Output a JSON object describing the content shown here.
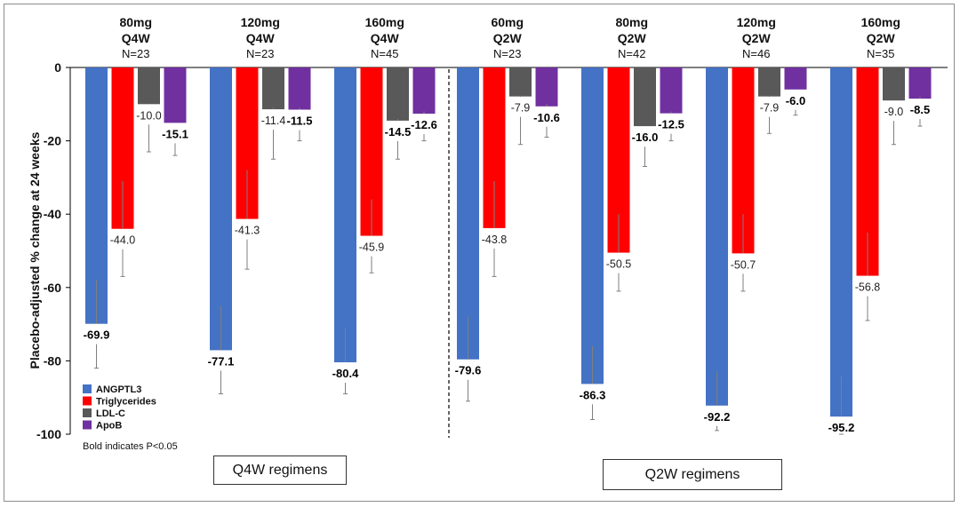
{
  "chart_data": {
    "type": "bar",
    "ylabel": "Placebo-adjusted % change at 24 weeks",
    "ylim": [
      -100,
      0
    ],
    "yticks": [
      0,
      -20,
      -40,
      -60,
      -80,
      -100
    ],
    "groups": [
      {
        "dose": "80mg",
        "freq": "Q4W",
        "n": "N=23"
      },
      {
        "dose": "120mg",
        "freq": "Q4W",
        "n": "N=23"
      },
      {
        "dose": "160mg",
        "freq": "Q4W",
        "n": "N=45"
      },
      {
        "dose": "60mg",
        "freq": "Q2W",
        "n": "N=23"
      },
      {
        "dose": "80mg",
        "freq": "Q2W",
        "n": "N=42"
      },
      {
        "dose": "120mg",
        "freq": "Q2W",
        "n": "N=46"
      },
      {
        "dose": "160mg",
        "freq": "Q2W",
        "n": "N=35"
      }
    ],
    "series": [
      {
        "name": "ANGPTL3",
        "color": "#4472C4",
        "values": [
          -69.9,
          -77.1,
          -80.4,
          -79.6,
          -86.3,
          -92.2,
          -95.2
        ],
        "labels": [
          "-69.9",
          "-77.1",
          "-80.4",
          "-79.6",
          "-86.3",
          "-92.2",
          "-95.2"
        ],
        "err_low": [
          -82,
          -89,
          -89,
          -91,
          -96,
          -99,
          -100
        ],
        "err_high": [
          -58,
          -65,
          -71,
          -68,
          -76,
          -83,
          -84
        ],
        "bold": [
          true,
          true,
          true,
          true,
          true,
          true,
          true
        ]
      },
      {
        "name": "Triglycerides",
        "color": "#FF0000",
        "values": [
          -44.0,
          -41.3,
          -45.9,
          -43.8,
          -50.5,
          -50.7,
          -56.8
        ],
        "labels": [
          "-44.0",
          "-41.3",
          "-45.9",
          "-43.8",
          "-50.5",
          "-50.7",
          "-56.8"
        ],
        "err_low": [
          -57,
          -55,
          -56,
          -57,
          -61,
          -61,
          -69
        ],
        "err_high": [
          -31,
          -28,
          -36,
          -31,
          -40,
          -40,
          -45
        ],
        "bold": [
          false,
          false,
          false,
          false,
          false,
          false,
          false
        ]
      },
      {
        "name": "LDL-C",
        "color": "#595959",
        "values": [
          -10.0,
          -11.4,
          -14.5,
          -7.9,
          -16.0,
          -7.9,
          -9.0
        ],
        "labels": [
          "-10.0",
          "-11.4",
          "-14.5",
          "-7.9",
          "-16.0",
          "-7.9",
          "-9.0"
        ],
        "err_low": [
          -23,
          -25,
          -25,
          -21,
          -27,
          -18,
          -21
        ],
        "err_high": [
          -10,
          -11,
          -14,
          -8,
          -16,
          -8,
          -9
        ],
        "bold": [
          false,
          false,
          true,
          false,
          true,
          false,
          false
        ]
      },
      {
        "name": "ApoB",
        "color": "#7030A0",
        "values": [
          -15.1,
          -11.5,
          -12.6,
          -10.6,
          -12.5,
          -6.0,
          -8.5
        ],
        "labels": [
          "-15.1",
          "-11.5",
          "-12.6",
          "-10.6",
          "-12.5",
          "-6.0",
          "-8.5"
        ],
        "err_low": [
          -24,
          -20,
          -20,
          -19,
          -20,
          -13,
          -16
        ],
        "err_high": [
          -15,
          -11,
          -12,
          -10,
          -12,
          -6,
          -8
        ],
        "bold": [
          true,
          true,
          true,
          true,
          true,
          true,
          true
        ]
      }
    ],
    "legend_position": "bottom-left",
    "note": "Bold indicates P<0.05",
    "regimen_labels": [
      "Q4W regimens",
      "Q2W regimens"
    ]
  }
}
